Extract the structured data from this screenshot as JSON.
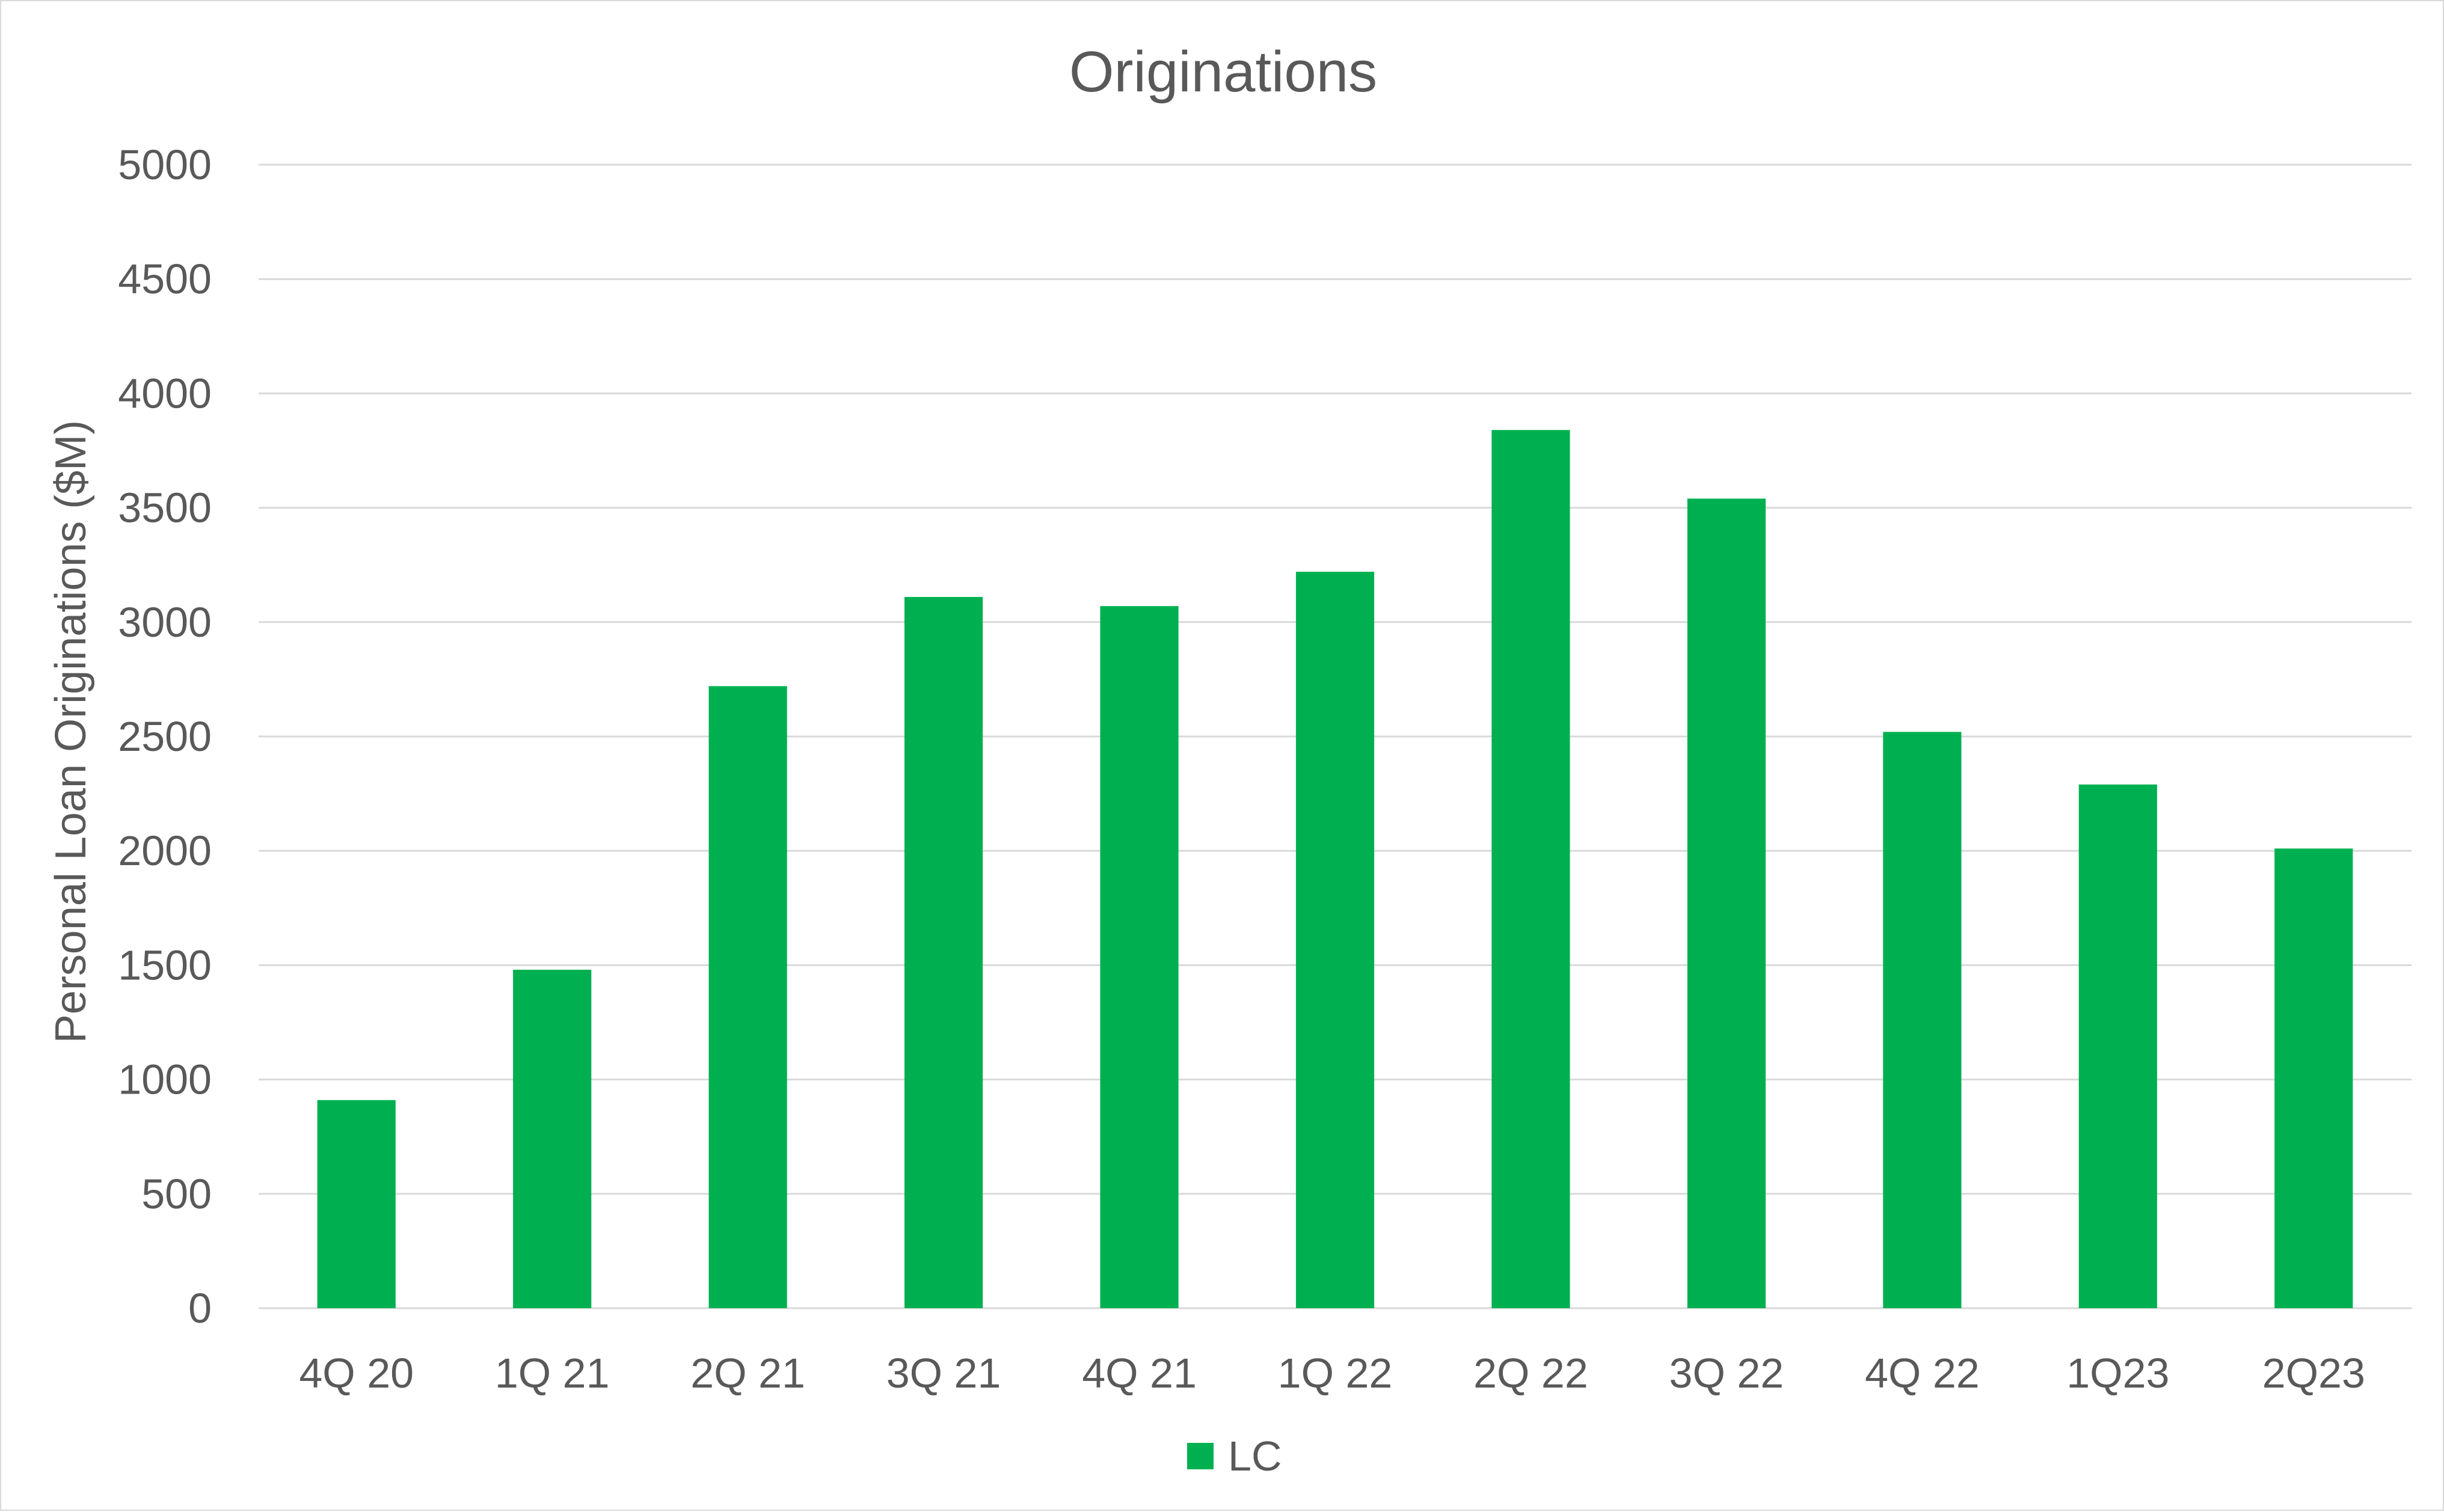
{
  "chart_data": {
    "type": "bar",
    "title": "Originations",
    "xlabel": "",
    "ylabel": "Personal Loan Originations ($M)",
    "ylim": [
      0,
      5000
    ],
    "yticks": [
      0,
      500,
      1000,
      1500,
      2000,
      2500,
      3000,
      3500,
      4000,
      4500,
      5000
    ],
    "categories": [
      "4Q 20",
      "1Q 21",
      "2Q 21",
      "3Q 21",
      "4Q 21",
      "1Q 22",
      "2Q 22",
      "3Q 22",
      "4Q 22",
      "1Q23",
      "2Q23"
    ],
    "series": [
      {
        "name": "LC",
        "color": "#00B050",
        "values": [
          910,
          1480,
          2720,
          3110,
          3070,
          3220,
          3840,
          3540,
          2520,
          2290,
          2010
        ]
      }
    ],
    "grid": true,
    "legend": "bottom"
  }
}
